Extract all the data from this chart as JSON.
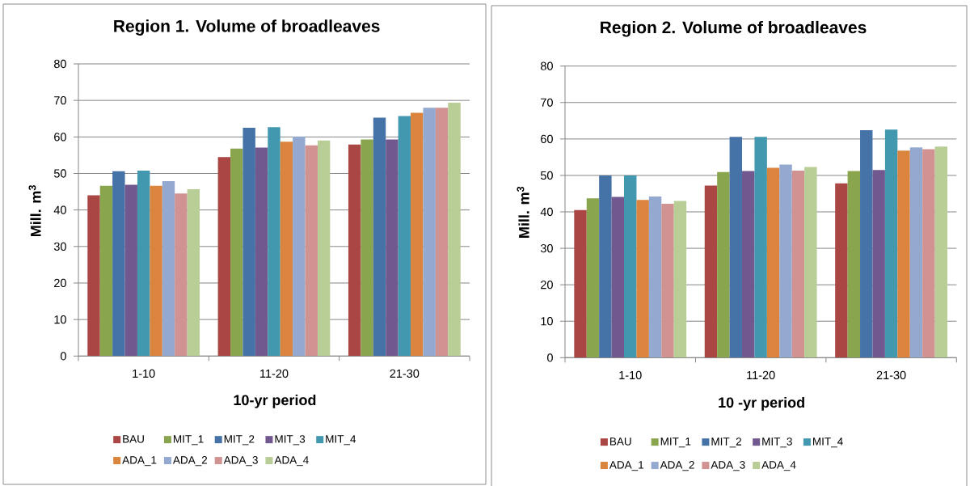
{
  "chart_data": [
    {
      "type": "bar",
      "title": "Region 1. Volume of broadleaves",
      "xlabel": "10-yr period",
      "ylabel": "Mill. m$^{3}$",
      "categories": [
        "1-10",
        "11-20",
        "21-30"
      ],
      "series": [
        {
          "name": "BAU",
          "color": "#aa4643",
          "values": [
            44.0,
            54.5,
            57.9
          ]
        },
        {
          "name": "MIT_1",
          "color": "#89a54e",
          "values": [
            46.6,
            56.8,
            59.3
          ]
        },
        {
          "name": "MIT_2",
          "color": "#4572a7",
          "values": [
            50.6,
            62.5,
            65.3
          ]
        },
        {
          "name": "MIT_3",
          "color": "#71588f",
          "values": [
            46.9,
            57.1,
            59.3
          ]
        },
        {
          "name": "MIT_4",
          "color": "#4198af",
          "values": [
            50.8,
            62.7,
            65.7
          ]
        },
        {
          "name": "ADA_1",
          "color": "#db843d",
          "values": [
            46.6,
            58.7,
            66.6
          ]
        },
        {
          "name": "ADA_2",
          "color": "#93a9cf",
          "values": [
            47.9,
            60.1,
            68.0
          ]
        },
        {
          "name": "ADA_3",
          "color": "#d19392",
          "values": [
            44.5,
            57.7,
            68.0
          ]
        },
        {
          "name": "ADA_4",
          "color": "#b9cd96",
          "values": [
            45.7,
            59.0,
            69.4
          ]
        }
      ],
      "ylim": [
        0,
        80
      ],
      "yticks": [
        0,
        10,
        20,
        30,
        40,
        50,
        60,
        70,
        80
      ],
      "grid": "y",
      "legend": "bottom"
    },
    {
      "type": "bar",
      "title": "Region 2. Volume of broadleaves",
      "xlabel": "10 -yr period",
      "ylabel": "Mill. m$^{3}$",
      "categories": [
        "1-10",
        "11-20",
        "21-30"
      ],
      "series": [
        {
          "name": "BAU",
          "color": "#aa4643",
          "values": [
            40.5,
            47.2,
            47.8
          ]
        },
        {
          "name": "MIT_1",
          "color": "#89a54e",
          "values": [
            43.7,
            50.9,
            51.2
          ]
        },
        {
          "name": "MIT_2",
          "color": "#4572a7",
          "values": [
            50.0,
            60.6,
            62.4
          ]
        },
        {
          "name": "MIT_3",
          "color": "#71588f",
          "values": [
            44.1,
            51.2,
            51.5
          ]
        },
        {
          "name": "MIT_4",
          "color": "#4198af",
          "values": [
            50.0,
            60.6,
            62.6
          ]
        },
        {
          "name": "ADA_1",
          "color": "#db843d",
          "values": [
            43.3,
            52.1,
            56.8
          ]
        },
        {
          "name": "ADA_2",
          "color": "#93a9cf",
          "values": [
            44.2,
            53.0,
            57.7
          ]
        },
        {
          "name": "ADA_3",
          "color": "#d19392",
          "values": [
            42.2,
            51.3,
            57.2
          ]
        },
        {
          "name": "ADA_4",
          "color": "#b9cd96",
          "values": [
            43.0,
            52.3,
            57.9
          ]
        }
      ],
      "ylim": [
        0,
        80
      ],
      "yticks": [
        0,
        10,
        20,
        30,
        40,
        50,
        60,
        70,
        80
      ],
      "grid": "y",
      "legend": "bottom"
    }
  ]
}
